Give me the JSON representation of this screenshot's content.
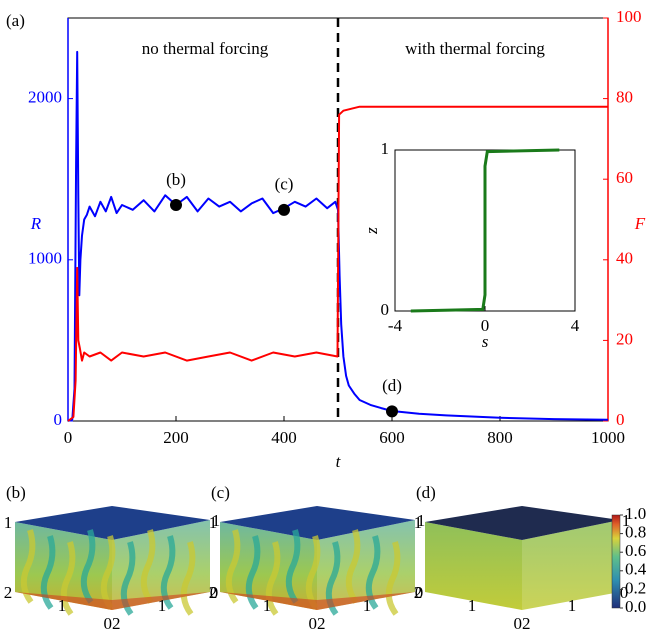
{
  "chart_data": [
    {
      "type": "line",
      "panel_label": "(a)",
      "xlabel": "t",
      "ylabel": "R",
      "y2label": "F",
      "annotations": [
        "no thermal forcing",
        "with thermal forcing"
      ],
      "xlim": [
        0,
        1000
      ],
      "xticks": [
        0,
        200,
        400,
        600,
        800,
        1000
      ],
      "ylim": [
        0,
        2500
      ],
      "yticks": [
        0,
        1000,
        2000
      ],
      "y2lim": [
        0,
        100
      ],
      "y2ticks": [
        0,
        20,
        40,
        60,
        80,
        100
      ],
      "vline_x": 500,
      "series": [
        {
          "name": "R",
          "color": "#0000ff",
          "axis": "y",
          "x": [
            0,
            8,
            12,
            15,
            17,
            19,
            21,
            23,
            26,
            30,
            35,
            40,
            50,
            60,
            70,
            80,
            90,
            100,
            120,
            140,
            160,
            180,
            200,
            220,
            240,
            260,
            280,
            300,
            320,
            340,
            360,
            380,
            400,
            420,
            440,
            460,
            480,
            495,
            500,
            503,
            506,
            510,
            515,
            520,
            530,
            540,
            560,
            580,
            600,
            650,
            700,
            800,
            900,
            1000
          ],
          "values": [
            0,
            10,
            200,
            1600,
            2290,
            1400,
            780,
            1000,
            1150,
            1250,
            1280,
            1330,
            1270,
            1360,
            1300,
            1390,
            1290,
            1340,
            1310,
            1370,
            1300,
            1400,
            1340,
            1390,
            1300,
            1380,
            1330,
            1360,
            1300,
            1350,
            1380,
            1290,
            1320,
            1360,
            1330,
            1380,
            1320,
            1360,
            1310,
            900,
            600,
            400,
            280,
            220,
            170,
            130,
            100,
            80,
            62,
            45,
            35,
            20,
            12,
            8
          ]
        },
        {
          "name": "F",
          "color": "#ff0000",
          "axis": "y2",
          "x": [
            0,
            10,
            14,
            17,
            19,
            22,
            26,
            30,
            40,
            60,
            80,
            100,
            140,
            180,
            220,
            260,
            300,
            340,
            380,
            420,
            460,
            499,
            502,
            510,
            540,
            600,
            800,
            1000
          ],
          "values": [
            0,
            1,
            10,
            38,
            20,
            18,
            15,
            17,
            16,
            17,
            15,
            17,
            16,
            17,
            15,
            16,
            17,
            15,
            17,
            16,
            17,
            16,
            76,
            77,
            78,
            78,
            78,
            78
          ]
        }
      ],
      "markers": {
        "x": [
          200,
          400,
          600
        ],
        "values": [
          1340,
          1310,
          60
        ],
        "labels": [
          "(b)",
          "(c)",
          "(d)"
        ]
      }
    },
    {
      "type": "line",
      "xlabel": "s",
      "ylabel": "z",
      "xlim": [
        -4,
        4
      ],
      "xticks": [
        -4,
        0,
        4
      ],
      "ylim": [
        0,
        1
      ],
      "yticks": [
        0,
        1
      ],
      "series": [
        {
          "color": "#1a7a1a",
          "x": [
            -3.3,
            -0.1,
            0,
            0,
            0.1,
            3.3
          ],
          "values": [
            0,
            0.01,
            0.1,
            0.9,
            0.99,
            1
          ]
        }
      ]
    },
    {
      "type": "colorbar",
      "ylim": [
        0,
        1
      ],
      "yticks": [
        {
          "value": 0,
          "label": "0.0"
        },
        {
          "value": 0.2,
          "label": "0.2"
        },
        {
          "value": 0.4,
          "label": "0.4"
        },
        {
          "value": 0.6,
          "label": "0.6"
        },
        {
          "value": 0.8,
          "label": "0.8"
        },
        {
          "value": 1,
          "label": "1.0"
        }
      ]
    }
  ],
  "panels": [
    {
      "label": "(b)",
      "axis_labels": [
        "1",
        "1",
        "2",
        "1",
        "1",
        "0",
        "02"
      ]
    },
    {
      "label": "(c)",
      "axis_labels": [
        "1",
        "1",
        "2",
        "1",
        "1",
        "0",
        "02"
      ]
    },
    {
      "label": "(d)",
      "axis_labels": [
        "1",
        "1",
        "2",
        "1",
        "1",
        "0",
        "02"
      ]
    }
  ]
}
